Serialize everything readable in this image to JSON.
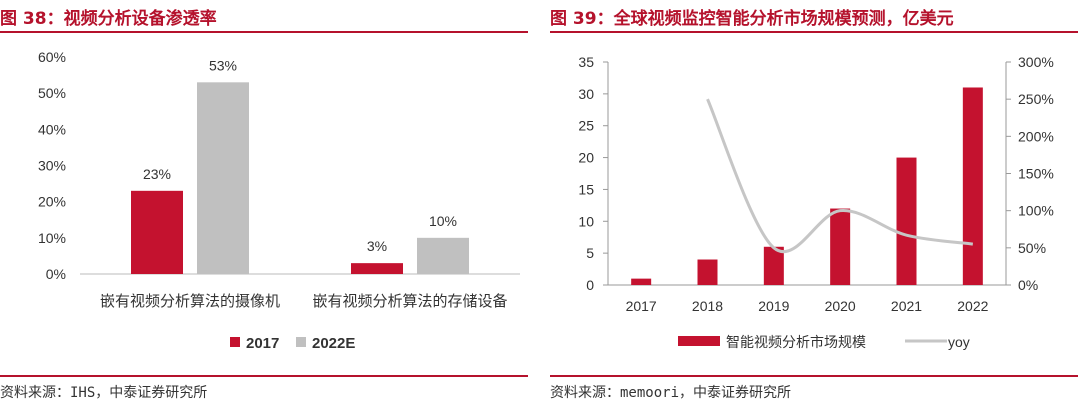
{
  "colors": {
    "accent": "#b5122c",
    "bar_red": "#c4122f",
    "bar_gray": "#c0c0c0",
    "line_gray": "#c6c6c6"
  },
  "left": {
    "title": "图 38：视频分析设备渗透率",
    "source": "资料来源：IHS，中泰证券研究所"
  },
  "right": {
    "title": "图 39：全球视频监控智能分析市场规模预测，亿美元",
    "source": "资料来源：memoori，中泰证券研究所"
  },
  "chart_data": [
    {
      "type": "bar",
      "categories": [
        "嵌有视频分析算法的摄像机",
        "嵌有视频分析算法的存储设备"
      ],
      "series": [
        {
          "name": "2017",
          "values": [
            23,
            3
          ]
        },
        {
          "name": "2022E",
          "values": [
            53,
            10
          ]
        }
      ],
      "data_labels": [
        [
          "23%",
          "3%"
        ],
        [
          "53%",
          "10%"
        ]
      ],
      "y_ticks": [
        "0%",
        "10%",
        "20%",
        "30%",
        "40%",
        "50%",
        "60%"
      ],
      "ylim": [
        0,
        60
      ],
      "legend_position": "bottom",
      "grid": false
    },
    {
      "type": "bar",
      "categories": [
        "2017",
        "2018",
        "2019",
        "2020",
        "2021",
        "2022"
      ],
      "series": [
        {
          "name": "智能视频分析市场规模",
          "type": "bar",
          "axis": "left",
          "values": [
            1,
            4,
            6,
            12,
            20,
            31
          ]
        },
        {
          "name": "yoy",
          "type": "line",
          "axis": "right",
          "values": [
            null,
            250,
            50,
            100,
            67,
            55
          ]
        }
      ],
      "y_ticks": [
        "0",
        "5",
        "10",
        "15",
        "20",
        "25",
        "30",
        "35"
      ],
      "y2_ticks": [
        "0%",
        "50%",
        "100%",
        "150%",
        "200%",
        "250%",
        "300%"
      ],
      "ylim": [
        0,
        35
      ],
      "y2lim": [
        0,
        300
      ],
      "legend_position": "bottom",
      "grid": false
    }
  ]
}
